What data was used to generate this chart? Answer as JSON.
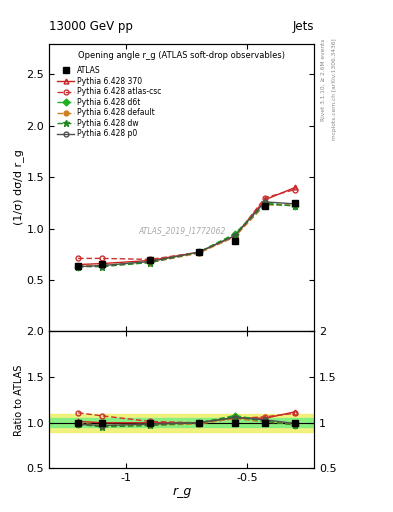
{
  "title_top": "13000 GeV pp",
  "title_right": "Jets",
  "plot_title": "Opening angle r_g (ATLAS soft-drop observables)",
  "ylabel_main": "(1/σ) dσ/d r_g",
  "ylabel_ratio": "Ratio to ATLAS",
  "xlabel": "r_g",
  "rivet_label": "Rivet 3.1.10, ≥ 2.6M events",
  "mcplots_label": "mcplots.cern.ch [arXiv:1306.3436]",
  "watermark": "ATLAS_2019_I1772062",
  "xvals": [
    -1.2,
    -1.1,
    -0.9,
    -0.7,
    -0.55,
    -0.425,
    -0.3
  ],
  "atlas_y": [
    0.64,
    0.66,
    0.69,
    0.77,
    0.88,
    1.22,
    1.25
  ],
  "py370_y": [
    0.65,
    0.66,
    0.69,
    0.77,
    0.93,
    1.28,
    1.4
  ],
  "py_atl_csc_y": [
    0.71,
    0.71,
    0.7,
    0.77,
    0.92,
    1.3,
    1.38
  ],
  "py_d6t_y": [
    0.63,
    0.64,
    0.68,
    0.77,
    0.95,
    1.25,
    1.22
  ],
  "py_def_y": [
    0.64,
    0.64,
    0.67,
    0.76,
    0.92,
    1.23,
    1.23
  ],
  "py_dw_y": [
    0.63,
    0.63,
    0.67,
    0.77,
    0.94,
    1.24,
    1.22
  ],
  "py_p0_y": [
    0.63,
    0.64,
    0.68,
    0.77,
    0.93,
    1.26,
    1.24
  ],
  "color_370": "#c82020",
  "color_atl_csc": "#cc3030",
  "color_d6t": "#20b020",
  "color_def": "#d08020",
  "color_dw": "#208820",
  "color_p0": "#505050",
  "color_atlas": "#000000",
  "band_green_color": "#80ee80",
  "band_yellow_color": "#eeee60",
  "main_ylim": [
    0.0,
    2.8
  ],
  "main_yticks": [
    0.5,
    1.0,
    1.5,
    2.0,
    2.5
  ],
  "ratio_ylim": [
    0.5,
    2.0
  ],
  "ratio_yticks": [
    0.5,
    1.0,
    1.5,
    2.0
  ],
  "xlim": [
    -1.32,
    -0.22
  ]
}
